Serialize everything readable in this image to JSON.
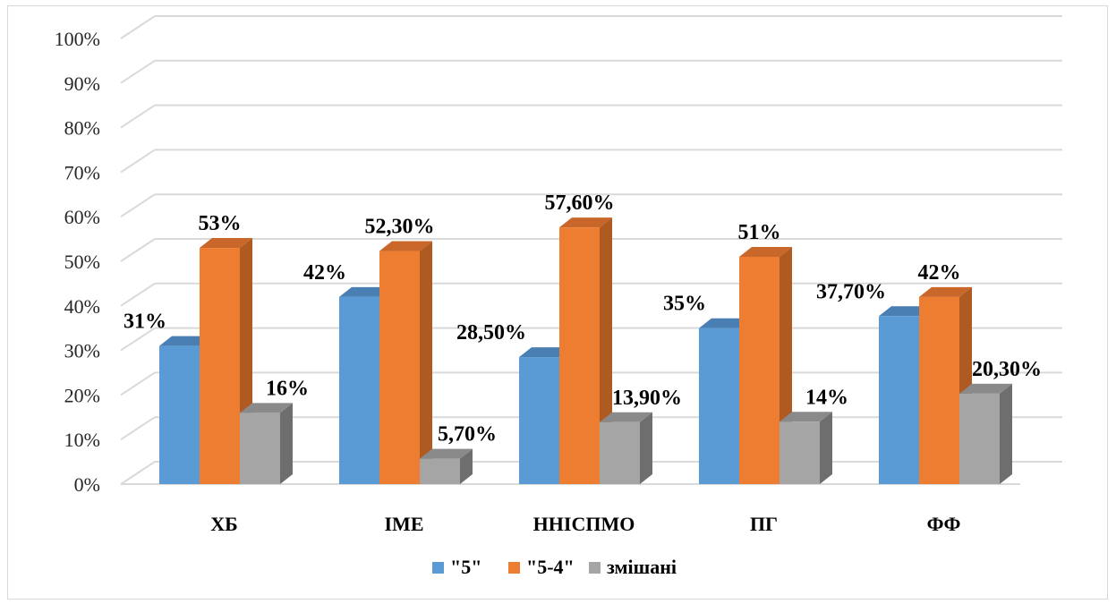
{
  "chart_data": {
    "type": "bar",
    "categories": [
      "ХБ",
      "ІМЕ",
      "ННІСПМО",
      "ПГ",
      "ФФ"
    ],
    "series": [
      {
        "name": "\"5\"",
        "color": "#5b9bd5",
        "side": "#41719c",
        "top": "#4a7fb3",
        "values": [
          31,
          42,
          28.5,
          35,
          37.7
        ],
        "labels": [
          "31%",
          "42%",
          "28,50%",
          "35%",
          "37,70%"
        ]
      },
      {
        "name": "\"5-4\"",
        "color": "#ed7d31",
        "side": "#ae5a21",
        "top": "#c9672a",
        "values": [
          53,
          52.3,
          57.6,
          51,
          42
        ],
        "labels": [
          "53%",
          "52,30%",
          "57,60%",
          "51%",
          "42%"
        ]
      },
      {
        "name": "змішані",
        "color": "#a5a5a5",
        "side": "#6e6e6e",
        "top": "#8a8a8a",
        "values": [
          16,
          5.7,
          13.9,
          14,
          20.3
        ],
        "labels": [
          "16%",
          "5,70%",
          "13,90%",
          "14%",
          "20,30%"
        ]
      }
    ],
    "y_ticks": [
      "0%",
      "10%",
      "20%",
      "30%",
      "40%",
      "50%",
      "60%",
      "70%",
      "80%",
      "90%",
      "100%"
    ],
    "ylim": [
      0,
      100
    ],
    "grid": true,
    "legend_position": "bottom"
  }
}
